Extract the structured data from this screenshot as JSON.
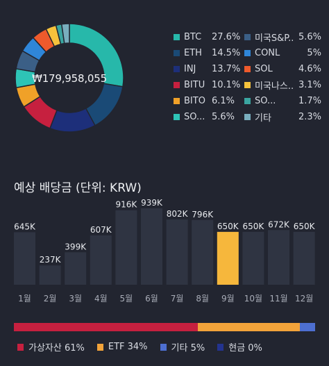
{
  "portfolio": {
    "total": "₩179,958,055",
    "legend_left": [
      {
        "name": "BTC",
        "pct": "27.6%",
        "color": "#27b8aa"
      },
      {
        "name": "ETH",
        "pct": "14.5%",
        "color": "#1a4a76"
      },
      {
        "name": "INJ",
        "pct": "13.7%",
        "color": "#1d2f7a"
      },
      {
        "name": "BITU",
        "pct": "10.1%",
        "color": "#c6203f"
      },
      {
        "name": "BITO",
        "pct": "6.1%",
        "color": "#f0a128"
      },
      {
        "name": "SO...",
        "pct": "5.6%",
        "color": "#2ec4b6"
      }
    ],
    "legend_right": [
      {
        "name": "미국S&P...",
        "pct": "5.6%",
        "color": "#3b5f86"
      },
      {
        "name": "CONL",
        "pct": "5%",
        "color": "#2f86d9"
      },
      {
        "name": "SOL",
        "pct": "4.6%",
        "color": "#ee5a2c"
      },
      {
        "name": "미국나스...",
        "pct": "3.1%",
        "color": "#f6c23c"
      },
      {
        "name": "SO...",
        "pct": "1.7%",
        "color": "#3aa5a0"
      },
      {
        "name": "기타",
        "pct": "2.3%",
        "color": "#79aebe"
      }
    ]
  },
  "dividends": {
    "title": "예상 배당금 (단위: KRW)",
    "highlight_color": "#f6b73c",
    "bar_color": "#2f3442"
  },
  "chart_data": {
    "type": "bar",
    "title": "예상 배당금 (단위: KRW)",
    "categories": [
      "1월",
      "2월",
      "3월",
      "4월",
      "5월",
      "6월",
      "7월",
      "8월",
      "9월",
      "10월",
      "11월",
      "12월"
    ],
    "values": [
      645,
      237,
      399,
      607,
      916,
      939,
      802,
      796,
      650,
      650,
      672,
      650
    ],
    "value_labels": [
      "645K",
      "237K",
      "399K",
      "607K",
      "916K",
      "939K",
      "802K",
      "796K",
      "650K",
      "650K",
      "672K",
      "650K"
    ],
    "highlight_index": 8,
    "ylim": [
      0,
      1000
    ]
  },
  "allocation": {
    "items": [
      {
        "label": "가상자산 61%",
        "share": 61,
        "color": "#c6203f"
      },
      {
        "label": "ETF 34%",
        "share": 34,
        "color": "#f2a33a"
      },
      {
        "label": "기타 5%",
        "share": 5,
        "color": "#4d6fd1"
      },
      {
        "label": "현금 0%",
        "share": 0,
        "color": "#23338f"
      }
    ]
  }
}
